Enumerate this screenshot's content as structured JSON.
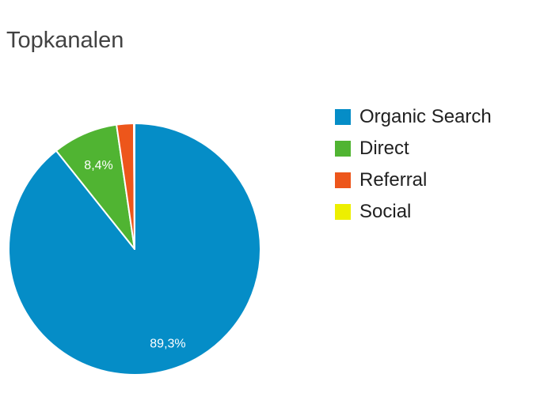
{
  "chart_data": {
    "type": "pie",
    "title": "Topkanalen",
    "slices": [
      {
        "label": "Organic Search",
        "value": 89.3,
        "color": "#058dc7",
        "data_label": "89,3%"
      },
      {
        "label": "Direct",
        "value": 8.4,
        "color": "#50b432",
        "data_label": "8,4%"
      },
      {
        "label": "Referral",
        "value": 2.2,
        "color": "#ed561b",
        "data_label": ""
      },
      {
        "label": "Social",
        "value": 0.1,
        "color": "#edef00",
        "data_label": ""
      }
    ],
    "legend_position": "right"
  }
}
